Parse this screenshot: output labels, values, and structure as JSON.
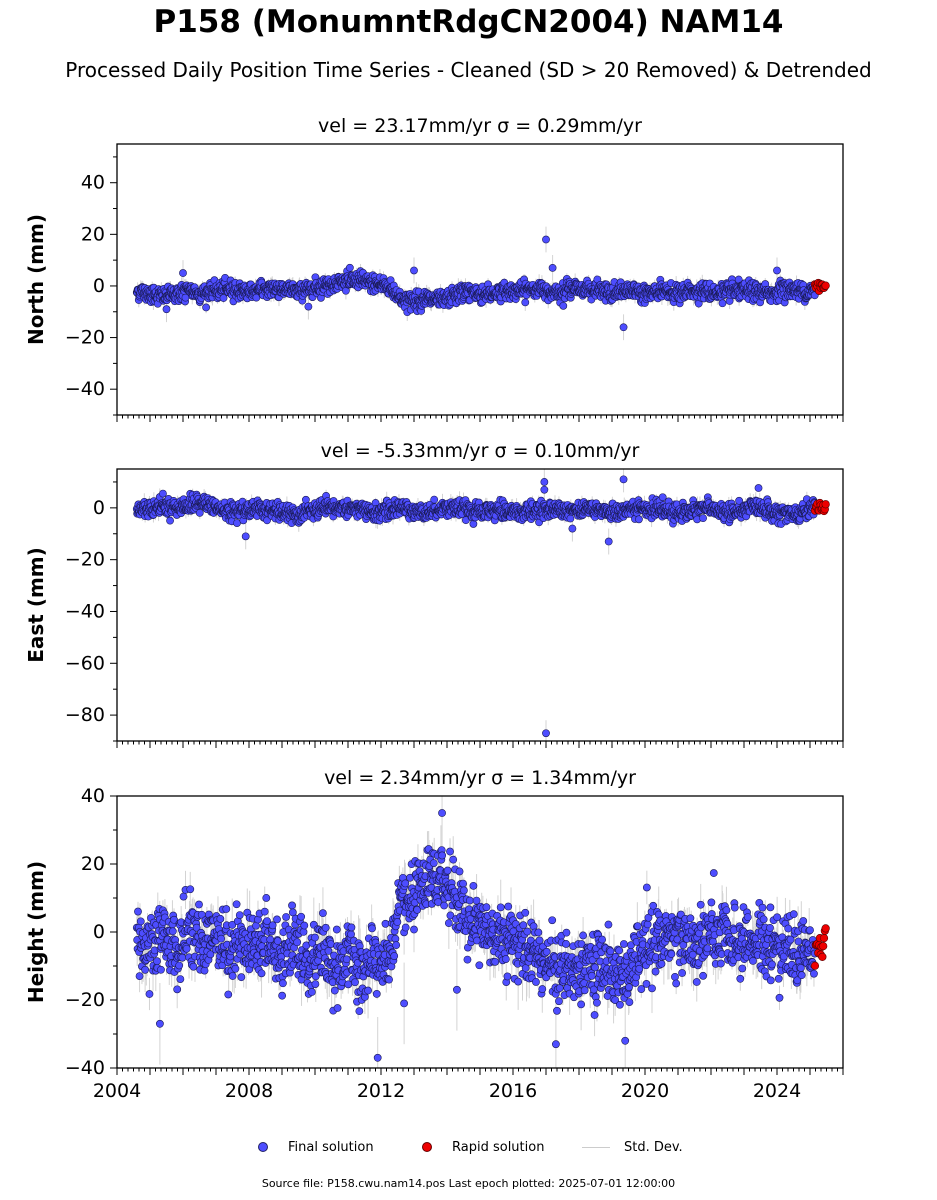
{
  "title": "P158 (MonumntRdgCN2004) NAM14",
  "subtitle": "Processed Daily Position Time Series - Cleaned (SD > 20 Removed) & Detrended",
  "source_note": "Source file: P158.cwu.nam14.pos  Last epoch plotted: 2025-07-01 12:00:00",
  "legend": {
    "final": "Final solution",
    "rapid": "Rapid solution",
    "std": "Std. Dev."
  },
  "colors": {
    "final": "#4d4dff",
    "rapid": "#ee0000",
    "std": "#b0b0b0"
  },
  "chart_data": [
    {
      "type": "scatter",
      "title": "vel = 23.17mm/yr   σ = 0.29mm/yr",
      "xlabel": "",
      "ylabel": "North (mm)",
      "xlim": [
        2004.0,
        2026.0
      ],
      "ylim": [
        -50,
        55
      ],
      "yticks": [
        -40,
        -20,
        0,
        20,
        40
      ],
      "xticks": [
        2004,
        2008,
        2012,
        2016,
        2020,
        2024
      ],
      "show_xtick_labels": false,
      "rapid_range": [
        2025.15,
        2025.5
      ],
      "series": [
        {
          "name": "Final solution",
          "x": [
            2004.6,
            2005.0,
            2005.4,
            2005.8,
            2006.2,
            2006.6,
            2007.0,
            2007.4,
            2007.8,
            2008.2,
            2008.6,
            2009.0,
            2009.4,
            2009.8,
            2010.2,
            2010.6,
            2011.0,
            2011.4,
            2011.8,
            2012.2,
            2012.6,
            2013.0,
            2013.4,
            2013.8,
            2014.2,
            2014.6,
            2015.0,
            2015.4,
            2015.8,
            2016.2,
            2016.6,
            2017.0,
            2017.4,
            2017.8,
            2018.2,
            2018.6,
            2019.0,
            2019.4,
            2019.8,
            2020.2,
            2020.6,
            2021.0,
            2021.4,
            2021.8,
            2022.2,
            2022.6,
            2023.0,
            2023.4,
            2023.8,
            2024.2,
            2024.6,
            2025.0
          ],
          "y": [
            -2,
            -3,
            -4,
            -3,
            -2,
            -3,
            -2,
            -1,
            -2,
            -2,
            -1,
            -1,
            -2,
            -1,
            0,
            1,
            2,
            2,
            1,
            0,
            -5,
            -6,
            -5,
            -6,
            -4,
            -2,
            -3,
            -3,
            -2,
            -2,
            -1,
            -2,
            -2,
            -1,
            -1,
            -2,
            -3,
            -2,
            -2,
            -3,
            -2,
            -3,
            -2,
            -2,
            -3,
            -2,
            -2,
            -2,
            -3,
            -1,
            -2,
            -2
          ]
        },
        {
          "name": "Rapid solution",
          "x": [
            2025.3
          ],
          "y": [
            0
          ]
        }
      ],
      "outliers": [
        {
          "x": 2017.0,
          "y": 18
        },
        {
          "x": 2019.35,
          "y": -16
        },
        {
          "x": 2006.0,
          "y": 5
        },
        {
          "x": 2013.0,
          "y": 6
        },
        {
          "x": 2024.0,
          "y": 6
        },
        {
          "x": 2017.2,
          "y": 7
        },
        {
          "x": 2009.8,
          "y": -8
        },
        {
          "x": 2005.5,
          "y": -9
        }
      ]
    },
    {
      "type": "scatter",
      "title": "vel = -5.33mm/yr   σ = 0.10mm/yr",
      "xlabel": "",
      "ylabel": "East (mm)",
      "xlim": [
        2004.0,
        2026.0
      ],
      "ylim": [
        -90,
        15
      ],
      "yticks": [
        -80,
        -60,
        -40,
        -20,
        0
      ],
      "xticks": [
        2004,
        2008,
        2012,
        2016,
        2020,
        2024
      ],
      "show_xtick_labels": false,
      "rapid_range": [
        2025.15,
        2025.5
      ],
      "series": [
        {
          "name": "Final solution",
          "x": [
            2004.6,
            2005.0,
            2005.4,
            2005.8,
            2006.2,
            2006.6,
            2007.0,
            2007.4,
            2007.8,
            2008.2,
            2008.6,
            2009.0,
            2009.4,
            2009.8,
            2010.2,
            2010.6,
            2011.0,
            2011.4,
            2011.8,
            2012.2,
            2012.6,
            2013.0,
            2013.4,
            2013.8,
            2014.2,
            2014.6,
            2015.0,
            2015.4,
            2015.8,
            2016.2,
            2016.6,
            2017.0,
            2017.4,
            2017.8,
            2018.2,
            2018.6,
            2019.0,
            2019.4,
            2019.8,
            2020.2,
            2020.6,
            2021.0,
            2021.4,
            2021.8,
            2022.2,
            2022.6,
            2023.0,
            2023.4,
            2023.8,
            2024.2,
            2024.6,
            2025.0
          ],
          "y": [
            -1,
            0,
            1,
            0,
            1,
            2,
            0,
            -2,
            -1,
            0,
            -1,
            -2,
            -3,
            -1,
            -1,
            0,
            0,
            -1,
            -2,
            -1,
            0,
            -1,
            -2,
            0,
            0,
            -1,
            -2,
            -1,
            -1,
            -2,
            -1,
            -1,
            0,
            -1,
            0,
            -1,
            -2,
            -1,
            0,
            -1,
            -1,
            -2,
            -1,
            0,
            -1,
            -2,
            -1,
            1,
            -1,
            -2,
            -3,
            0
          ]
        },
        {
          "name": "Rapid solution",
          "x": [
            2025.3
          ],
          "y": [
            0
          ]
        }
      ],
      "outliers": [
        {
          "x": 2017.0,
          "y": -87
        },
        {
          "x": 2016.95,
          "y": 10
        },
        {
          "x": 2016.95,
          "y": 7
        },
        {
          "x": 2019.35,
          "y": 11
        },
        {
          "x": 2018.9,
          "y": -13
        },
        {
          "x": 2007.9,
          "y": -11
        },
        {
          "x": 2017.8,
          "y": -8
        }
      ]
    },
    {
      "type": "scatter",
      "title": "vel = 2.34mm/yr   σ = 1.34mm/yr",
      "xlabel": "",
      "ylabel": "Height (mm)",
      "xlim": [
        2004.0,
        2026.0
      ],
      "ylim": [
        -40,
        40
      ],
      "yticks": [
        -40,
        -20,
        0,
        20,
        40
      ],
      "xticks": [
        2004,
        2008,
        2012,
        2016,
        2020,
        2024
      ],
      "show_xtick_labels": true,
      "rapid_range": [
        2025.15,
        2025.5
      ],
      "series": [
        {
          "name": "Final solution",
          "x": [
            2004.6,
            2005.0,
            2005.4,
            2005.8,
            2006.2,
            2006.6,
            2007.0,
            2007.4,
            2007.8,
            2008.2,
            2008.6,
            2009.0,
            2009.4,
            2009.8,
            2010.2,
            2010.6,
            2011.0,
            2011.4,
            2011.8,
            2012.2,
            2012.6,
            2013.0,
            2013.4,
            2013.8,
            2014.2,
            2014.6,
            2015.0,
            2015.4,
            2015.8,
            2016.2,
            2016.6,
            2017.0,
            2017.4,
            2017.8,
            2018.2,
            2018.6,
            2019.0,
            2019.4,
            2019.8,
            2020.2,
            2020.6,
            2021.0,
            2021.4,
            2021.8,
            2022.2,
            2022.6,
            2023.0,
            2023.4,
            2023.8,
            2024.2,
            2024.6,
            2025.0
          ],
          "y": [
            0,
            -8,
            0,
            -6,
            2,
            -4,
            0,
            -6,
            -2,
            -4,
            -2,
            -8,
            -2,
            -10,
            -4,
            -12,
            -6,
            -14,
            -8,
            -10,
            8,
            10,
            14,
            16,
            12,
            4,
            2,
            0,
            -2,
            -4,
            -6,
            -8,
            -10,
            -12,
            -8,
            -10,
            -12,
            -14,
            -6,
            -4,
            -2,
            0,
            -4,
            -2,
            0,
            -4,
            -2,
            -2,
            -4,
            -4,
            -6,
            -6
          ]
        },
        {
          "name": "Rapid solution",
          "x": [
            2025.3
          ],
          "y": [
            -4
          ]
        }
      ],
      "outliers": [
        {
          "x": 2013.85,
          "y": 35
        },
        {
          "x": 2011.9,
          "y": -37
        },
        {
          "x": 2017.3,
          "y": -33
        },
        {
          "x": 2019.4,
          "y": -32
        },
        {
          "x": 2005.3,
          "y": -27
        },
        {
          "x": 2014.3,
          "y": -17
        },
        {
          "x": 2012.7,
          "y": -21
        }
      ]
    }
  ]
}
